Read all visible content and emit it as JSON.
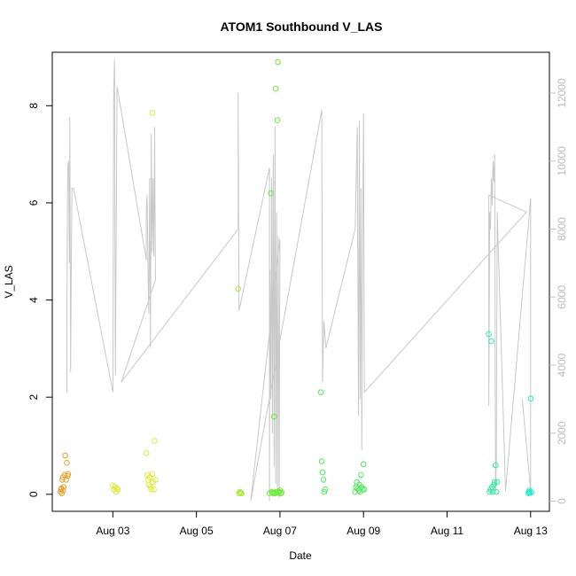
{
  "chart_data": {
    "type": "scatter",
    "title": "ATOM1 Southbound V_LAS",
    "xlabel": "Date",
    "ylabel": "V_LAS",
    "x_ticks": [
      "Aug 03",
      "Aug 05",
      "Aug 07",
      "Aug 09",
      "Aug 11",
      "Aug 13"
    ],
    "x_tick_days": [
      3,
      5,
      7,
      9,
      11,
      13
    ],
    "xlim": [
      1.55,
      13.45
    ],
    "ylim": [
      -0.35,
      9.1
    ],
    "y_ticks": [
      0,
      2,
      4,
      6,
      8
    ],
    "y2_ticks": [
      0,
      2000,
      4000,
      6000,
      8000,
      10000,
      12000
    ],
    "y2lim": [
      -300,
      13200
    ],
    "y2_color": "#c0c0c0",
    "line_series": {
      "name": "",
      "color": "#c8c8c8",
      "x": [
        1.9,
        1.9,
        1.92,
        1.94,
        1.96,
        1.97,
        1.99,
        2.0,
        2.02,
        2.04,
        2.06,
        3.0,
        3.02,
        3.04,
        3.06,
        3.1,
        3.8,
        3.8,
        3.82,
        3.84,
        3.86,
        3.88,
        3.9,
        3.92,
        3.94,
        3.96,
        3.98,
        4.0,
        4.02,
        3.2,
        6.0,
        6.0,
        6.02,
        6.75,
        6.75,
        6.76,
        6.78,
        6.8,
        6.82,
        6.84,
        6.86,
        6.88,
        6.9,
        6.92,
        6.94,
        6.96,
        6.98,
        7.0,
        6.3,
        8.0,
        8.02,
        8.05,
        8.1,
        8.8,
        8.85,
        8.88,
        8.9,
        8.92,
        8.94,
        8.96,
        8.98,
        9.0,
        9.02,
        12.9,
        12.0,
        12.0,
        12.02,
        12.04,
        12.06,
        12.08,
        12.1,
        12.12,
        12.14,
        12.16,
        12.18,
        12.2,
        12.4,
        13.0,
        13.0,
        12.8
      ],
      "y": [
        3200,
        5600,
        9800,
        10000,
        7000,
        11300,
        3800,
        6000,
        9200,
        9200,
        9200,
        3200,
        12000,
        13000,
        3700,
        12200,
        7100,
        8500,
        9000,
        6800,
        5500,
        9500,
        4500,
        10800,
        7300,
        9500,
        7200,
        11000,
        6500,
        3500,
        8000,
        12000,
        5600,
        9800,
        0,
        6800,
        3000,
        9500,
        2000,
        10200,
        1000,
        11000,
        500,
        8500,
        200,
        7800,
        100,
        7700,
        0,
        11500,
        3500,
        5300,
        4500,
        8000,
        11000,
        2500,
        11200,
        3000,
        9200,
        1500,
        7600,
        11400,
        3200,
        8500,
        9000,
        2800,
        8500,
        8000,
        9500,
        8700,
        10000,
        9400,
        10200,
        300,
        1200,
        8500,
        300,
        8900,
        300,
        3000
      ]
    },
    "point_series": [
      {
        "name": "",
        "color": "#e8a030",
        "x": [
          1.75,
          1.76,
          1.77,
          1.78,
          1.79,
          1.8,
          1.81,
          1.82,
          1.85,
          1.86,
          1.88,
          1.9,
          1.92,
          1.93
        ],
        "y": [
          0.05,
          0.1,
          0.12,
          0.02,
          0.3,
          0.35,
          0.08,
          0.15,
          0.4,
          0.8,
          0.3,
          0.65,
          0.38,
          0.42
        ]
      },
      {
        "name": "",
        "color": "#dde838",
        "x": [
          3.0,
          3.02,
          3.05,
          3.08,
          3.1,
          3.12,
          3.8,
          3.82,
          3.84,
          3.86,
          3.88,
          3.9,
          3.92,
          3.94,
          3.95,
          3.96,
          3.98,
          4.0,
          4.02
        ],
        "y": [
          0.18,
          0.1,
          0.15,
          0.05,
          0.12,
          0.1,
          0.85,
          0.4,
          0.3,
          0.2,
          0.35,
          0.15,
          0.1,
          0.42,
          7.85,
          0.25,
          0.1,
          1.1,
          0.3
        ]
      },
      {
        "name": "",
        "color": "#a8e838",
        "x": [
          6.0,
          6.02,
          6.04,
          6.06,
          6.08
        ],
        "y": [
          4.23,
          0.02,
          0.05,
          0.03,
          0.02
        ]
      },
      {
        "name": "",
        "color": "#70e840",
        "x": [
          6.75,
          6.78,
          6.8,
          6.82,
          6.84,
          6.86,
          6.87,
          6.88,
          6.9,
          6.92,
          6.94,
          6.95,
          6.96,
          6.98,
          7.0,
          7.02,
          7.04
        ],
        "y": [
          0.02,
          6.2,
          0.05,
          0.03,
          0.02,
          1.6,
          0.04,
          0.02,
          8.35,
          0.05,
          7.7,
          8.9,
          0.03,
          0.05,
          0.08,
          0.02,
          0.04
        ],
        "symbol": "circle"
      },
      {
        "name": "",
        "color": "#50e860",
        "x": [
          7.98,
          8.0,
          8.02,
          8.04,
          8.06,
          8.08,
          8.8,
          8.82,
          8.84,
          8.86,
          8.88,
          8.9,
          8.92,
          8.94,
          8.96,
          8.98,
          9.0,
          9.02
        ],
        "y": [
          2.1,
          0.68,
          0.45,
          0.3,
          0.05,
          0.1,
          0.05,
          0.15,
          0.25,
          0.12,
          0.08,
          0.2,
          0.05,
          0.4,
          0.15,
          0.1,
          0.62,
          0.1
        ]
      },
      {
        "name": "",
        "color": "#30e8a0",
        "x": [
          12.0,
          12.02,
          12.04,
          12.06,
          12.08,
          12.1,
          12.12,
          12.14,
          12.16,
          12.18,
          12.2
        ],
        "y": [
          3.3,
          0.05,
          0.1,
          3.15,
          0.15,
          0.05,
          0.2,
          0.25,
          0.6,
          0.05,
          0.25
        ]
      },
      {
        "name": "",
        "color": "#20e8c8",
        "x": [
          12.95,
          12.96,
          12.97,
          12.98,
          13.0,
          13.02
        ],
        "y": [
          0.02,
          0.05,
          0.08,
          0.03,
          1.97,
          0.04
        ]
      }
    ]
  }
}
